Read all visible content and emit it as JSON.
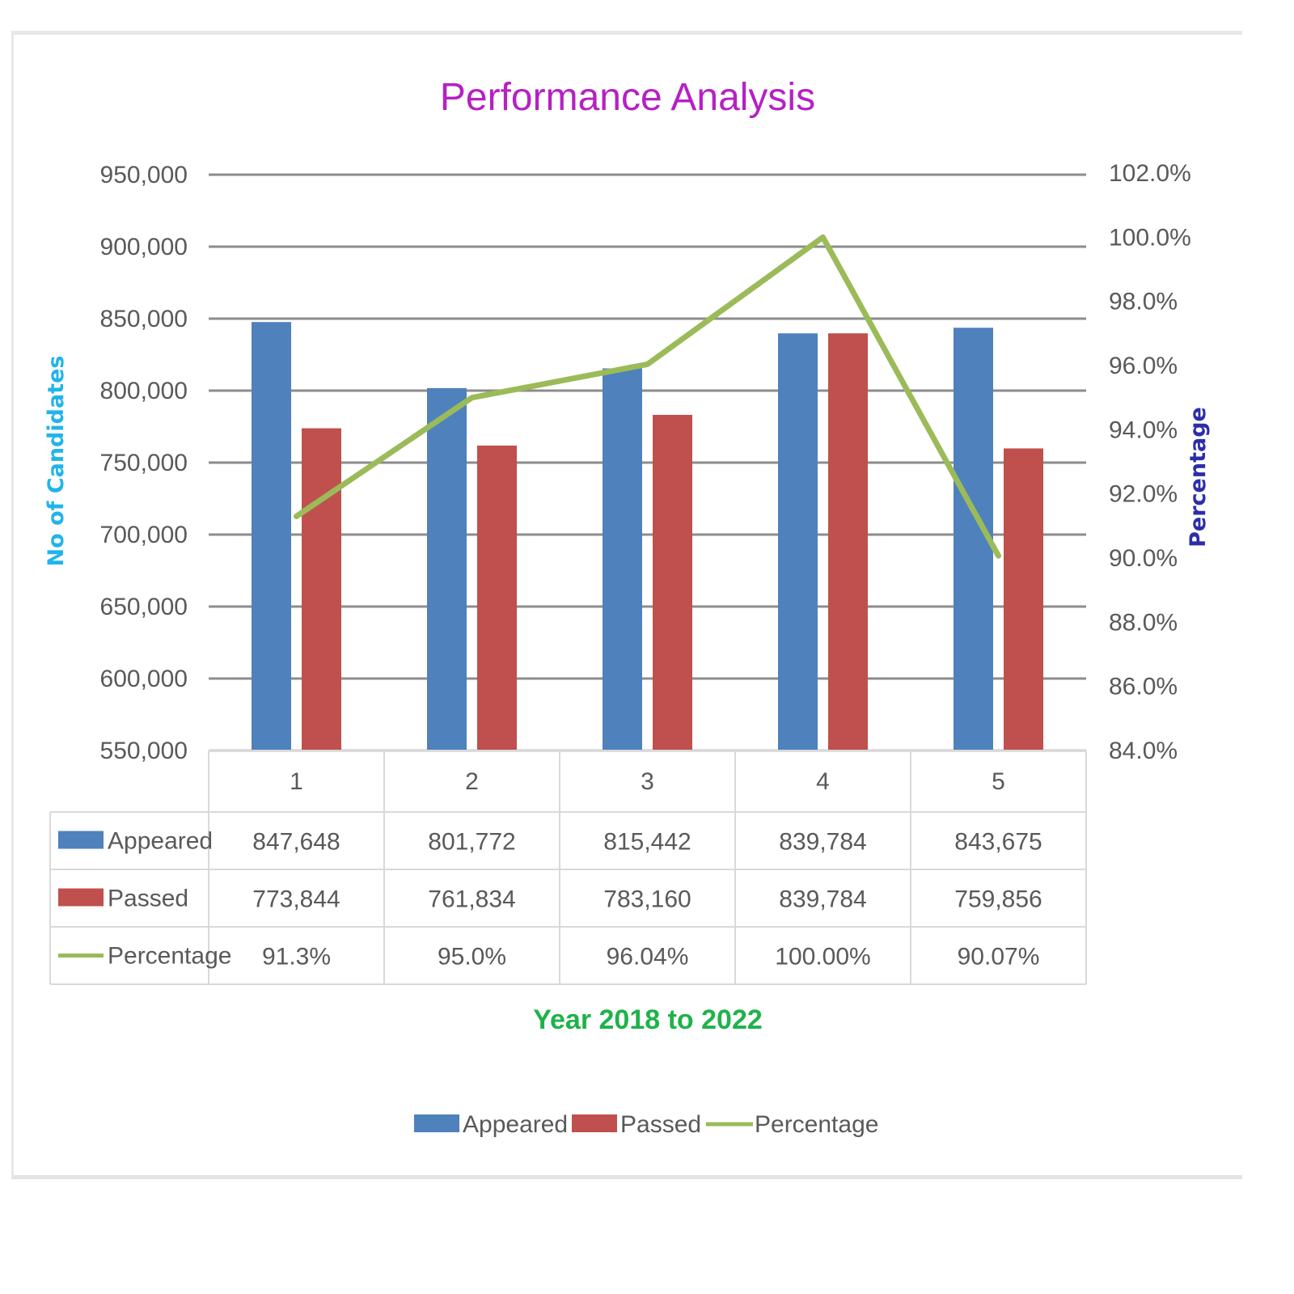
{
  "chart_data": {
    "type": "bar",
    "title": "Performance Analysis",
    "xlabel": "Year 2018 to 2022",
    "ylabel": "No of Candidates",
    "y2label": "Percentage",
    "categories": [
      "1",
      "2",
      "3",
      "4",
      "5"
    ],
    "ylim": [
      550000,
      950000
    ],
    "y2lim": [
      84.0,
      102.0
    ],
    "yticks": [
      "550,000",
      "600,000",
      "650,000",
      "700,000",
      "750,000",
      "800,000",
      "850,000",
      "900,000",
      "950,000"
    ],
    "y2ticks": [
      "84.0%",
      "86.0%",
      "88.0%",
      "90.0%",
      "92.0%",
      "94.0%",
      "96.0%",
      "98.0%",
      "100.0%",
      "102.0%"
    ],
    "grid": true,
    "legend_position": "bottom",
    "series": [
      {
        "name": "Appeared",
        "type": "bar",
        "axis": "left",
        "color": "#4f81bd",
        "values": [
          847648,
          801772,
          815442,
          839784,
          843675
        ],
        "labels": [
          "847,648",
          "801,772",
          "815,442",
          "839,784",
          "843,675"
        ]
      },
      {
        "name": "Passed",
        "type": "bar",
        "axis": "left",
        "color": "#c0504d",
        "values": [
          773844,
          761834,
          783160,
          839784,
          759856
        ],
        "labels": [
          "773,844",
          "761,834",
          "783,160",
          "839,784",
          "759,856"
        ]
      },
      {
        "name": "Percentage",
        "type": "line",
        "axis": "right",
        "color": "#9bbb59",
        "values": [
          91.3,
          95.0,
          96.04,
          100.0,
          90.07
        ],
        "labels": [
          "91.3%",
          "95.0%",
          "96.04%",
          "100.00%",
          "90.07%"
        ]
      }
    ]
  }
}
